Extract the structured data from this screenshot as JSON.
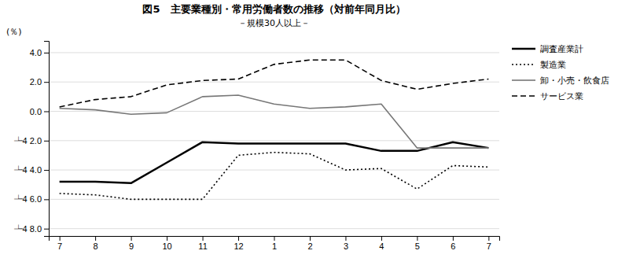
{
  "chart_data": {
    "type": "line",
    "title": "図5　主要業種別・常用労働者数の推移（対前年同月比）",
    "subtitle": "－規模30人以上－",
    "y_label": "(％)",
    "categories": [
      "7",
      "8",
      "9",
      "10",
      "11",
      "12",
      "1",
      "2",
      "3",
      "4",
      "5",
      "6",
      "7"
    ],
    "series": [
      {
        "name": "調査産業計",
        "color": "#000000",
        "line_style": "solid",
        "values": [
          -4.8,
          -4.8,
          -4.9,
          -3.5,
          -2.1,
          -2.2,
          -2.2,
          -2.2,
          -2.2,
          -2.7,
          -2.7,
          -2.1,
          -2.5
        ]
      },
      {
        "name": "製造業",
        "color": "#000000",
        "line_style": "dotted",
        "values": [
          -5.6,
          -5.7,
          -6.0,
          -6.0,
          -6.0,
          -3.0,
          -2.8,
          -2.9,
          -4.0,
          -3.9,
          -5.3,
          -3.7,
          -3.8
        ]
      },
      {
        "name": "卸・小売・飲食店",
        "color": "#777777",
        "line_style": "solid",
        "values": [
          0.2,
          0.1,
          -0.2,
          -0.1,
          1.0,
          1.1,
          0.5,
          0.2,
          0.3,
          0.5,
          -2.5,
          -2.5,
          -2.5
        ]
      },
      {
        "name": "サービス業",
        "color": "#000000",
        "line_style": "dashed",
        "values": [
          0.3,
          0.8,
          1.0,
          1.8,
          2.1,
          2.2,
          3.2,
          3.5,
          3.5,
          2.1,
          1.5,
          1.9,
          2.2
        ]
      }
    ],
    "ylim": [
      -8.5,
      4.8
    ],
    "yticks": [
      {
        "value": 4.0,
        "label": "4.0"
      },
      {
        "value": 2.0,
        "label": "2.0"
      },
      {
        "value": 0.0,
        "label": "0.0"
      },
      {
        "value": -2.0,
        "label": "┶4 2.0"
      },
      {
        "value": -4.0,
        "label": "┶4 4.0"
      },
      {
        "value": -6.0,
        "label": "┶4 6.0"
      },
      {
        "value": -8.0,
        "label": "┶4 8.0"
      }
    ],
    "grid": true,
    "legend": "right"
  }
}
